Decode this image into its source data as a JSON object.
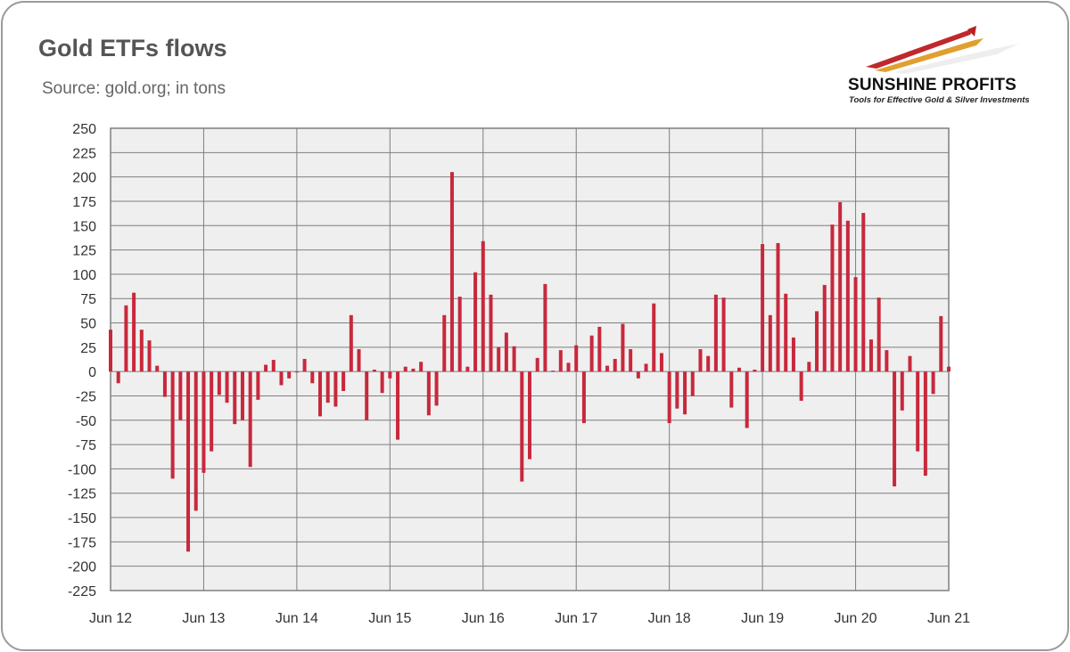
{
  "header": {
    "title": "Gold ETFs flows",
    "subtitle": "Source: gold.org; in tons"
  },
  "logo": {
    "brand": "SUNSHINE PROFITS",
    "tagline": "Tools for Effective Gold & Silver Investments"
  },
  "colors": {
    "bar": "#c8283c",
    "plot_bg": "#efefef",
    "grid": "#7f7f7f"
  },
  "chart_data": {
    "type": "bar",
    "title": "Gold ETFs flows",
    "xlabel": "",
    "ylabel": "",
    "ylim": [
      -225,
      250
    ],
    "y_ticks": [
      250,
      225,
      200,
      175,
      150,
      125,
      100,
      75,
      50,
      25,
      0,
      -25,
      -50,
      -75,
      -100,
      -125,
      -150,
      -175,
      -200,
      -225
    ],
    "x_tick_labels": [
      "Jun 12",
      "Jun 13",
      "Jun 14",
      "Jun 15",
      "Jun 16",
      "Jun 17",
      "Jun 18",
      "Jun 19",
      "Jun 20",
      "Jun 21"
    ],
    "grid": true,
    "values": [
      43,
      -12,
      68,
      81,
      43,
      32,
      6,
      -26,
      -110,
      -50,
      -185,
      -143,
      -104,
      -82,
      -24,
      -32,
      -54,
      -50,
      -98,
      -29,
      7,
      12,
      -14,
      -7,
      0,
      13,
      -12,
      -46,
      -32,
      -36,
      -20,
      58,
      23,
      -50,
      2,
      -22,
      -7,
      -70,
      5,
      3,
      10,
      -45,
      -35,
      58,
      205,
      77,
      5,
      102,
      134,
      79,
      25,
      40,
      26,
      -113,
      -90,
      14,
      90,
      1,
      22,
      9,
      27,
      -53,
      37,
      46,
      6,
      13,
      49,
      23,
      -7,
      8,
      70,
      19,
      -53,
      -38,
      -44,
      -25,
      23,
      16,
      79,
      76,
      -37,
      4,
      -58,
      2,
      131,
      58,
      132,
      80,
      35,
      -30,
      10,
      62,
      89,
      151,
      174,
      155,
      97,
      163,
      33,
      76,
      22,
      -118,
      -40,
      16,
      -82,
      -107,
      -23,
      57,
      5
    ]
  }
}
